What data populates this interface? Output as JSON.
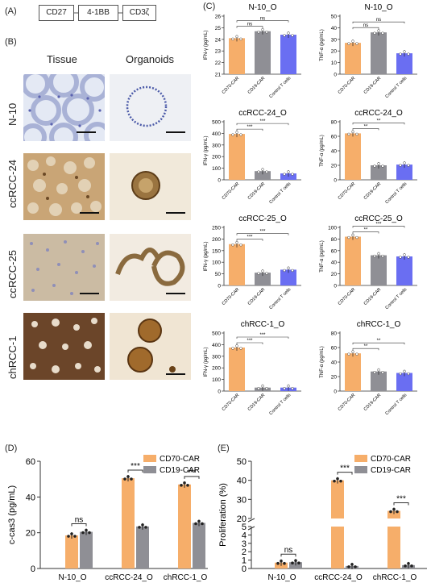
{
  "panels": {
    "a": "(A)",
    "b": "(B)",
    "c": "(C)",
    "d": "(D)",
    "e": "(E)"
  },
  "construct": [
    {
      "label": "CD27",
      "color": "#e0e0e0"
    },
    {
      "label": "4-1BB",
      "color": "#d9c9ef"
    },
    {
      "label": "CD3ζ",
      "color": "#cde9f5"
    }
  ],
  "histology": {
    "col_headers": [
      "Tissue",
      "Organoids"
    ],
    "rows": [
      {
        "label": "N-10",
        "tissue": "#dfe6f3",
        "organoid": "#eceff5"
      },
      {
        "label": "ccRCC-24",
        "tissue": "#c8a574",
        "organoid": "#efe6d6"
      },
      {
        "label": "ccRCC-25",
        "tissue": "#c9b699",
        "organoid": "#efe7dc"
      },
      {
        "label": "chRCC-1",
        "tissue": "#6b4427",
        "organoid": "#eee2cf"
      }
    ]
  },
  "colors": {
    "cd70": "#f6ae6a",
    "cd19": "#8f8f95",
    "ctrl": "#6a6ef2"
  },
  "chart_data": [
    {
      "id": "c1",
      "type": "bar",
      "title": "N-10_O",
      "ylabel": "IFN-γ (pg/mL)",
      "ylim": [
        21,
        26
      ],
      "yticks": [
        21,
        22,
        23,
        24,
        25,
        26
      ],
      "categories": [
        "CD70-CAR",
        "CD19-CAR",
        "Control T cells"
      ],
      "values": [
        24.1,
        24.7,
        24.4
      ],
      "sig": [
        {
          "from": 0,
          "to": 1,
          "label": "ns"
        },
        {
          "from": 0,
          "to": 2,
          "label": "ns"
        }
      ]
    },
    {
      "id": "c2",
      "type": "bar",
      "title": "N-10_O",
      "ylabel": "TNF-α (pg/mL)",
      "ylim": [
        0,
        50
      ],
      "yticks": [
        0,
        10,
        20,
        30,
        40,
        50
      ],
      "categories": [
        "CD70-CAR",
        "CD19-CAR",
        "Control T cells"
      ],
      "values": [
        27,
        36,
        18
      ],
      "sig": [
        {
          "from": 0,
          "to": 1,
          "label": "ns"
        },
        {
          "from": 0,
          "to": 2,
          "label": "ns"
        }
      ]
    },
    {
      "id": "c3",
      "type": "bar",
      "title": "ccRCC-24_O",
      "ylabel": "IFN-γ (pg/mL)",
      "ylim": [
        0,
        500
      ],
      "yticks": [
        0,
        100,
        200,
        300,
        400,
        500
      ],
      "categories": [
        "CD70-CAR",
        "CD19-CAR",
        "Control T cells"
      ],
      "values": [
        395,
        75,
        55
      ],
      "sig": [
        {
          "from": 0,
          "to": 1,
          "label": "***"
        },
        {
          "from": 0,
          "to": 2,
          "label": "***"
        }
      ]
    },
    {
      "id": "c4",
      "type": "bar",
      "title": "ccRCC-24_O",
      "ylabel": "TNF-α (pg/mL)",
      "ylim": [
        0,
        80
      ],
      "yticks": [
        0,
        20,
        40,
        60,
        80
      ],
      "categories": [
        "CD70-CAR",
        "CD19-CAR",
        "Control T cells"
      ],
      "values": [
        64,
        20,
        21
      ],
      "sig": [
        {
          "from": 0,
          "to": 1,
          "label": "**"
        },
        {
          "from": 0,
          "to": 2,
          "label": "**"
        }
      ]
    },
    {
      "id": "c5",
      "type": "bar",
      "title": "ccRCC-25_O",
      "ylabel": "IFN-γ (pg/mL)",
      "ylim": [
        0,
        250
      ],
      "yticks": [
        0,
        50,
        100,
        150,
        200,
        250
      ],
      "categories": [
        "CD70-CAR",
        "CD19-CAR",
        "Control T cells"
      ],
      "values": [
        178,
        55,
        68
      ],
      "sig": [
        {
          "from": 0,
          "to": 1,
          "label": "***"
        },
        {
          "from": 0,
          "to": 2,
          "label": "***"
        }
      ]
    },
    {
      "id": "c6",
      "type": "bar",
      "title": "ccRCC-25_O",
      "ylabel": "TNF-α (pg/mL)",
      "ylim": [
        0,
        100
      ],
      "yticks": [
        0,
        20,
        40,
        60,
        80,
        100
      ],
      "categories": [
        "CD70-CAR",
        "CD19-CAR",
        "Control T cells"
      ],
      "values": [
        84,
        52,
        50
      ],
      "sig": [
        {
          "from": 0,
          "to": 1,
          "label": "**"
        },
        {
          "from": 0,
          "to": 2,
          "label": "***"
        }
      ]
    },
    {
      "id": "c7",
      "type": "bar",
      "title": "chRCC-1_O",
      "ylabel": "IFN-γ (pg/mL)",
      "ylim": [
        0,
        500
      ],
      "yticks": [
        0,
        100,
        200,
        300,
        400,
        500
      ],
      "categories": [
        "CD70-CAR",
        "CD19-CAR",
        "Control T cells"
      ],
      "values": [
        375,
        30,
        30
      ],
      "sig": [
        {
          "from": 0,
          "to": 1,
          "label": "***"
        },
        {
          "from": 0,
          "to": 2,
          "label": "***"
        }
      ]
    },
    {
      "id": "c8",
      "type": "bar",
      "title": "chRCC-1_O",
      "ylabel": "TNF-α (pg/mL)",
      "ylim": [
        0,
        80
      ],
      "yticks": [
        0,
        20,
        40,
        60,
        80
      ],
      "categories": [
        "CD70-CAR",
        "CD19-CAR",
        "Control T cells"
      ],
      "values": [
        52,
        27,
        25
      ],
      "sig": [
        {
          "from": 0,
          "to": 1,
          "label": "**"
        },
        {
          "from": 0,
          "to": 2,
          "label": "**"
        }
      ]
    },
    {
      "id": "d",
      "type": "bar",
      "title": "",
      "ylabel": "c-cas3 (pg/mL)",
      "ylim": [
        0,
        60
      ],
      "yticks": [
        0,
        20,
        40,
        60
      ],
      "categories": [
        "N-10_O",
        "ccRCC-24_O",
        "chRCC-1_O"
      ],
      "series": [
        {
          "name": "CD70-CAR",
          "values": [
            18.5,
            50.5,
            47
          ]
        },
        {
          "name": "CD19-CAR",
          "values": [
            20.5,
            23.5,
            25.5
          ]
        }
      ],
      "sig": [
        "ns",
        "***",
        "***"
      ]
    },
    {
      "id": "e",
      "type": "bar",
      "title": "",
      "ylabel": "Proliferation (%)",
      "ylim": [
        0,
        50
      ],
      "yticks_low": [
        0,
        1,
        2,
        3,
        4,
        5
      ],
      "yticks_high": [
        20,
        30,
        40,
        50
      ],
      "axis_break": [
        5,
        20
      ],
      "categories": [
        "N-10_O",
        "ccRCC-24_O",
        "chRCC-1_O"
      ],
      "series": [
        {
          "name": "CD70-CAR",
          "values": [
            0.7,
            40,
            24
          ]
        },
        {
          "name": "CD19-CAR",
          "values": [
            0.75,
            0.3,
            0.4
          ]
        }
      ],
      "sig": [
        "ns",
        "***",
        "***"
      ]
    }
  ]
}
